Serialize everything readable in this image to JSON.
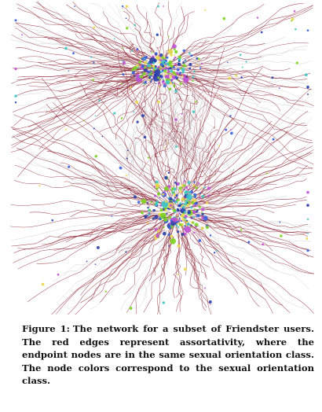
{
  "figure": {
    "label": "Figure 1:",
    "caption": "The network for a subset of Friendster users. The red edges represent assortativity, where the endpoint nodes are in the same sexual orientation class. The node colors correspond to the sexual orientation class."
  },
  "colors": {
    "assortative_edge": "#8b1e2e",
    "other_edge": "#b9b9bd",
    "node_palette": [
      "#3a5fd9",
      "#7ed321",
      "#c04fd4",
      "#e8d84a",
      "#3cc7c2",
      "#2a3ea8"
    ]
  }
}
